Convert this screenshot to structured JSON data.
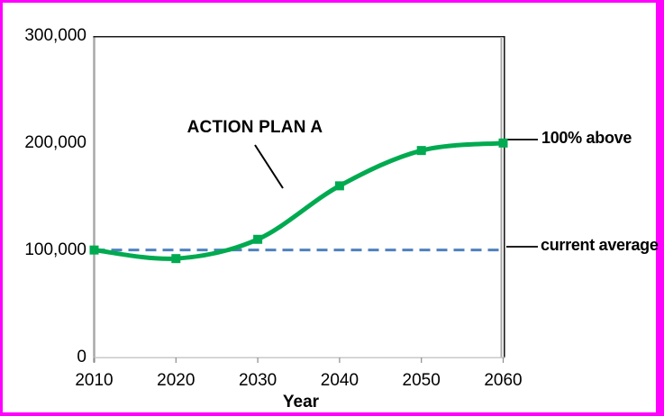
{
  "window": {
    "background": "#ffffff",
    "border_color": "#ff00ff"
  },
  "chart_data": {
    "type": "line",
    "title": "",
    "xlabel": "Year",
    "ylabel": "",
    "x": [
      2010,
      2020,
      2030,
      2040,
      2050,
      2060
    ],
    "x_tick_labels": [
      "2010",
      "2020",
      "2030",
      "2040",
      "2050",
      "2060"
    ],
    "y_tick_values": [
      0,
      100000,
      200000,
      300000
    ],
    "y_tick_labels": [
      "0",
      "100,000",
      "200,000",
      "300,000"
    ],
    "xlim": [
      2010,
      2060
    ],
    "ylim": [
      0,
      300000
    ],
    "grid": false,
    "legend": "none",
    "series": [
      {
        "name": "ACTION PLAN A",
        "values": [
          100000,
          92000,
          110000,
          160000,
          193000,
          200000
        ],
        "color": "#00AA50",
        "marker": "square",
        "smooth": true
      }
    ],
    "reference_line": {
      "value": 100000,
      "style": "dashed",
      "color": "#4F81BD",
      "label": "current average"
    },
    "annotations": {
      "action_plan": {
        "text": "ACTION PLAN A"
      },
      "pct_above": {
        "text": "100% above"
      },
      "current_average": {
        "text": "current average"
      }
    }
  }
}
